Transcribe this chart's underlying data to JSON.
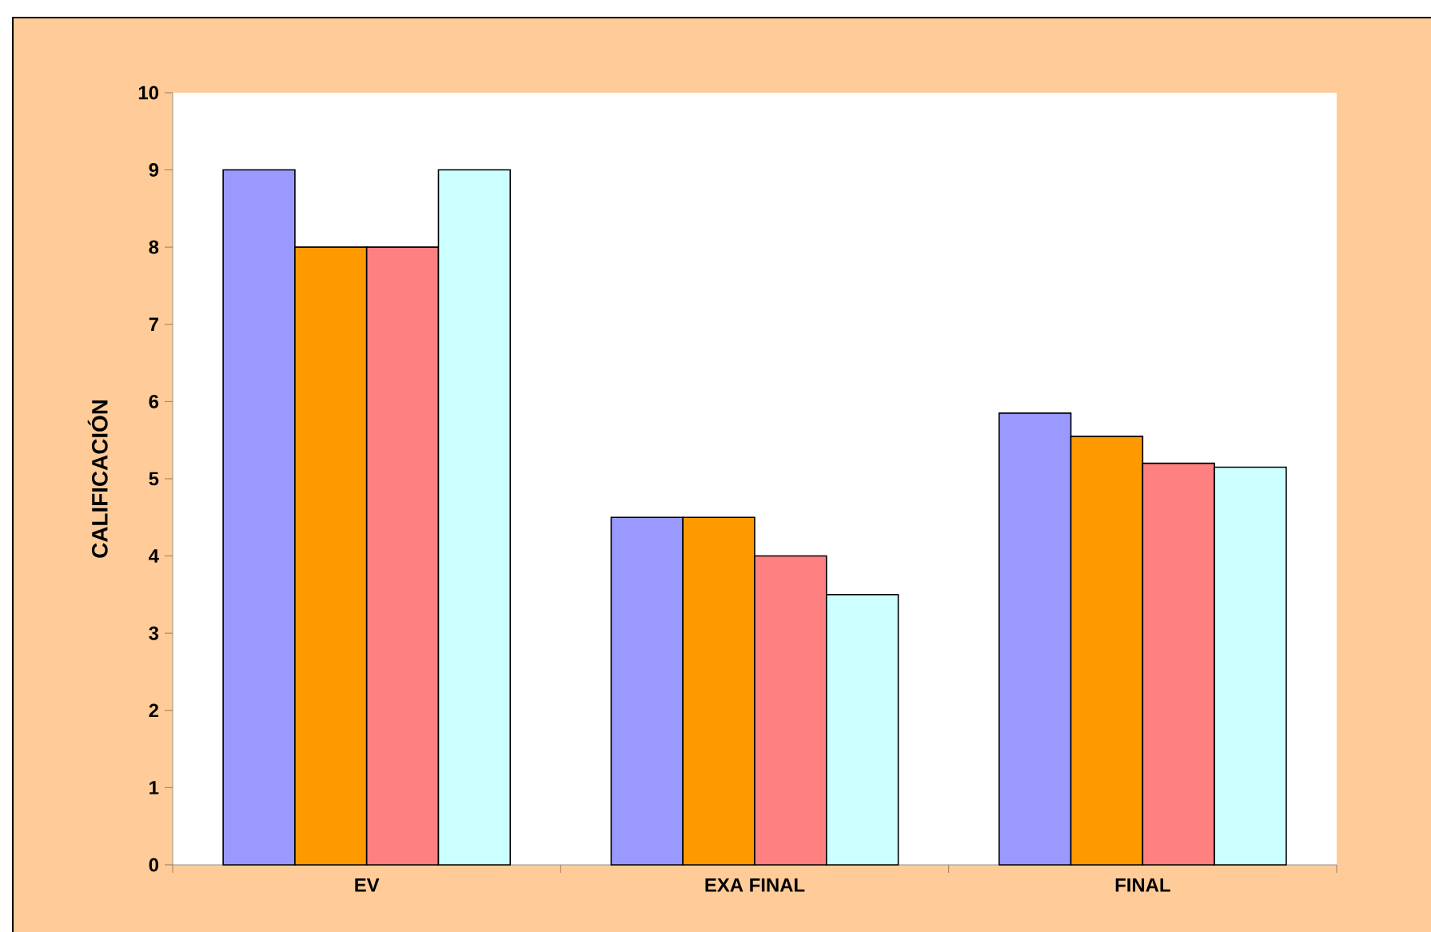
{
  "chart_data": {
    "type": "bar",
    "ylabel": "CALIFICACIÓN",
    "categories": [
      "EV",
      "EXA FINAL",
      "FINAL"
    ],
    "series": [
      {
        "color": "#9999ff",
        "values": [
          9,
          4.5,
          5.85
        ]
      },
      {
        "color": "#ff9900",
        "values": [
          8,
          4.5,
          5.55
        ]
      },
      {
        "color": "#ff8080",
        "values": [
          8,
          4,
          5.2
        ]
      },
      {
        "color": "#ccffff",
        "values": [
          9,
          3.5,
          5.15
        ]
      }
    ],
    "ylim": [
      0,
      10
    ],
    "yticks": [
      0,
      1,
      2,
      3,
      4,
      5,
      6,
      7,
      8,
      9,
      10
    ],
    "grid": false
  }
}
